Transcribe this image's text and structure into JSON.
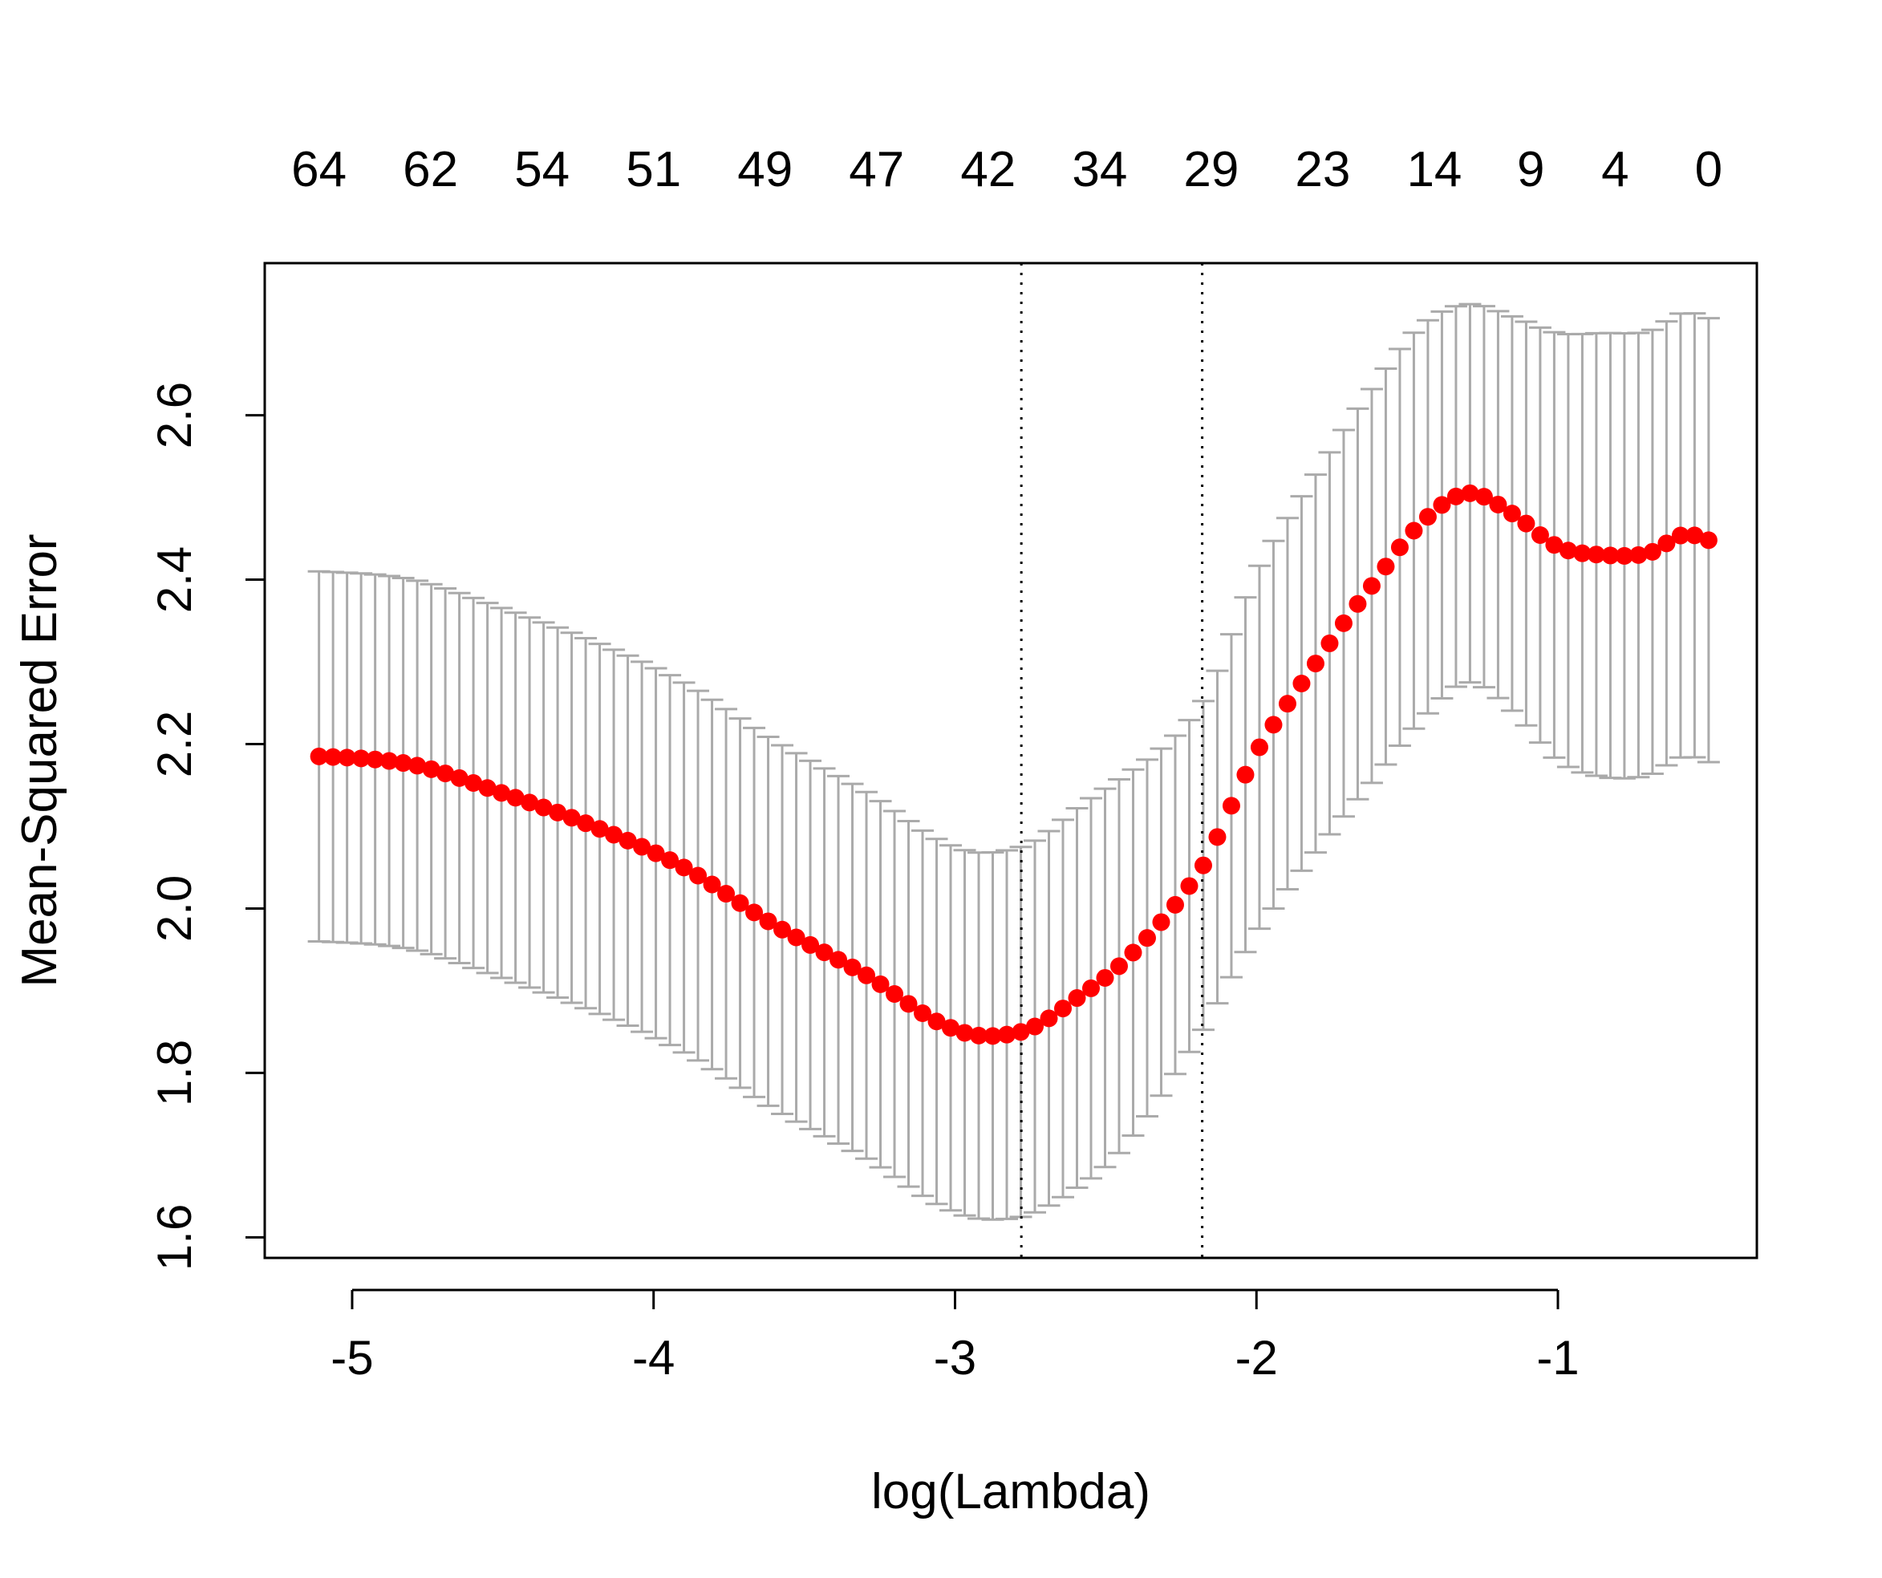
{
  "chart_data": {
    "type": "scatter",
    "xlabel": "log(Lambda)",
    "ylabel": "Mean-Squared Error",
    "xlim": [
      -5.29,
      -0.34
    ],
    "ylim": [
      1.575,
      2.785
    ],
    "x_ticks": [
      -5,
      -4,
      -3,
      -2,
      -1
    ],
    "x_tick_labels": [
      "-5",
      "-4",
      "-3",
      "-2",
      "-1"
    ],
    "y_ticks": [
      1.6,
      1.8,
      2.0,
      2.2,
      2.4,
      2.6
    ],
    "y_tick_labels": [
      "1.6",
      "1.8",
      "2.0",
      "2.2",
      "2.4",
      "2.6"
    ],
    "top_axis": {
      "x": [
        -5.11,
        -4.74,
        -4.37,
        -4.0,
        -3.63,
        -3.26,
        -2.89,
        -2.52,
        -2.15,
        -1.78,
        -1.41,
        -1.09,
        -0.81,
        -0.5
      ],
      "labels": [
        "64",
        "62",
        "54",
        "51",
        "49",
        "47",
        "42",
        "34",
        "29",
        "23",
        "14",
        "9",
        "4",
        "0"
      ]
    },
    "vlines": [
      -2.78,
      -2.18
    ],
    "grid": false,
    "point_color": "#ff0000",
    "errorbar_color": "#aaaaaa",
    "x_range": [
      -5.11,
      -0.5
    ],
    "n_points": 100,
    "mse_knots": {
      "x": [
        -5.11,
        -4.8,
        -4.5,
        -4.2,
        -3.9,
        -3.6,
        -3.3,
        -3.0,
        -2.78,
        -2.6,
        -2.4,
        -2.18,
        -2.0,
        -1.8,
        -1.6,
        -1.45,
        -1.3,
        -1.15,
        -1.0,
        -0.85,
        -0.7,
        -0.58,
        -0.5
      ],
      "y": [
        2.185,
        2.175,
        2.14,
        2.1,
        2.05,
        1.98,
        1.92,
        1.853,
        1.85,
        1.89,
        1.95,
        2.05,
        2.19,
        2.3,
        2.4,
        2.47,
        2.505,
        2.48,
        2.44,
        2.43,
        2.432,
        2.455,
        2.448
      ]
    },
    "se_knots": {
      "x": [
        -5.11,
        -4.5,
        -4.0,
        -3.5,
        -3.0,
        -2.78,
        -2.5,
        -2.18,
        -2.0,
        -1.8,
        -1.6,
        -1.45,
        -1.3,
        -1.15,
        -1.0,
        -0.85,
        -0.7,
        -0.5
      ],
      "y": [
        0.225,
        0.225,
        0.225,
        0.224,
        0.222,
        0.225,
        0.23,
        0.2,
        0.22,
        0.23,
        0.24,
        0.24,
        0.23,
        0.24,
        0.26,
        0.27,
        0.27,
        0.27
      ]
    }
  }
}
